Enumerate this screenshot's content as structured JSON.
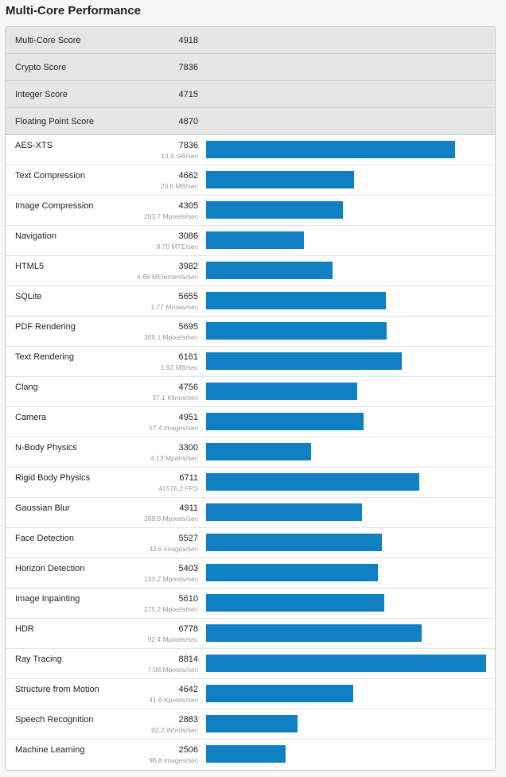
{
  "title": "Multi-Core Performance",
  "bar_color": "#0f80c1",
  "summary": [
    {
      "name": "Multi-Core Score",
      "score": "4918"
    },
    {
      "name": "Crypto Score",
      "score": "7836"
    },
    {
      "name": "Integer Score",
      "score": "4715"
    },
    {
      "name": "Floating Point Score",
      "score": "4870"
    }
  ],
  "benchmarks": [
    {
      "name": "AES-XTS",
      "score": "7836",
      "rate": "13.4 GB/sec"
    },
    {
      "name": "Text Compression",
      "score": "4662",
      "rate": "23.6 MB/sec"
    },
    {
      "name": "Image Compression",
      "score": "4305",
      "rate": "203.7 Mpixels/sec"
    },
    {
      "name": "Navigation",
      "score": "3086",
      "rate": "8.70 MTE/sec"
    },
    {
      "name": "HTML5",
      "score": "3982",
      "rate": "4.68 MElements/sec"
    },
    {
      "name": "SQLite",
      "score": "5655",
      "rate": "1.77 Mrows/sec"
    },
    {
      "name": "PDF Rendering",
      "score": "5695",
      "rate": "309.1 Mpixels/sec"
    },
    {
      "name": "Text Rendering",
      "score": "6161",
      "rate": "1.92 MB/sec"
    },
    {
      "name": "Clang",
      "score": "4756",
      "rate": "37.1 Klines/sec"
    },
    {
      "name": "Camera",
      "score": "4951",
      "rate": "57.4 images/sec"
    },
    {
      "name": "N-Body Physics",
      "score": "3300",
      "rate": "4.13 Mpairs/sec"
    },
    {
      "name": "Rigid Body Physics",
      "score": "6711",
      "rate": "41576.2 FPS"
    },
    {
      "name": "Gaussian Blur",
      "score": "4911",
      "rate": "269.9 Mpixels/sec"
    },
    {
      "name": "Face Detection",
      "score": "5527",
      "rate": "42.6 images/sec"
    },
    {
      "name": "Horizon Detection",
      "score": "5403",
      "rate": "133.2 Mpixels/sec"
    },
    {
      "name": "Image Inpainting",
      "score": "5610",
      "rate": "275.2 Mpixels/sec"
    },
    {
      "name": "HDR",
      "score": "6778",
      "rate": "92.4 Mpixels/sec"
    },
    {
      "name": "Ray Tracing",
      "score": "8814",
      "rate": "7.08 Mpixels/sec"
    },
    {
      "name": "Structure from Motion",
      "score": "4642",
      "rate": "41.6 Kpixels/sec"
    },
    {
      "name": "Speech Recognition",
      "score": "2883",
      "rate": "92.2 Words/sec"
    },
    {
      "name": "Machine Learning",
      "score": "2506",
      "rate": "96.8 images/sec"
    }
  ]
}
